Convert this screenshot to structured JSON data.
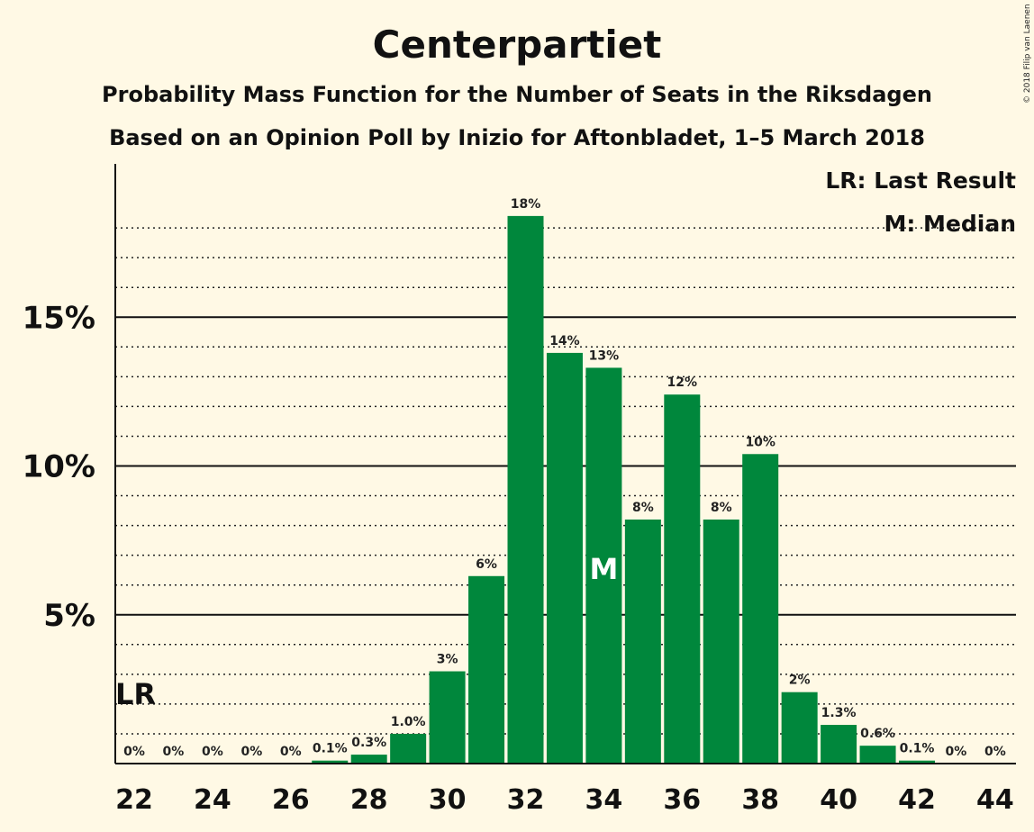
{
  "chart_data": {
    "type": "bar",
    "title": "Centerpartiet",
    "subtitle_1": "Probability Mass Function for the Number of Seats in the Riksdagen",
    "subtitle_2": "Based on an Opinion Poll by Inizio for Aftonbladet, 1–5 March 2018",
    "copyright": "© 2018 Filip van Laenen",
    "bar_color": "#00873c",
    "ylim": [
      0,
      20
    ],
    "yticks": [
      {
        "value": 5,
        "label": "5%"
      },
      {
        "value": 10,
        "label": "10%"
      },
      {
        "value": 15,
        "label": "15%"
      }
    ],
    "xticks": [
      {
        "value": 22,
        "label": "22"
      },
      {
        "value": 24,
        "label": "24"
      },
      {
        "value": 26,
        "label": "26"
      },
      {
        "value": 28,
        "label": "28"
      },
      {
        "value": 30,
        "label": "30"
      },
      {
        "value": 32,
        "label": "32"
      },
      {
        "value": 34,
        "label": "34"
      },
      {
        "value": 36,
        "label": "36"
      },
      {
        "value": 38,
        "label": "38"
      },
      {
        "value": 40,
        "label": "40"
      },
      {
        "value": 42,
        "label": "42"
      },
      {
        "value": 44,
        "label": "44"
      }
    ],
    "bars": [
      {
        "x": 22,
        "value": 0,
        "label": "0%"
      },
      {
        "x": 23,
        "value": 0,
        "label": "0%"
      },
      {
        "x": 24,
        "value": 0,
        "label": "0%"
      },
      {
        "x": 25,
        "value": 0,
        "label": "0%"
      },
      {
        "x": 26,
        "value": 0,
        "label": "0%"
      },
      {
        "x": 27,
        "value": 0.1,
        "label": "0.1%"
      },
      {
        "x": 28,
        "value": 0.3,
        "label": "0.3%"
      },
      {
        "x": 29,
        "value": 1.0,
        "label": "1.0%"
      },
      {
        "x": 30,
        "value": 3.1,
        "label": "3%"
      },
      {
        "x": 31,
        "value": 6.3,
        "label": "6%"
      },
      {
        "x": 32,
        "value": 18.4,
        "label": "18%"
      },
      {
        "x": 33,
        "value": 13.8,
        "label": "14%"
      },
      {
        "x": 34,
        "value": 13.3,
        "label": "13%"
      },
      {
        "x": 35,
        "value": 8.2,
        "label": "8%"
      },
      {
        "x": 36,
        "value": 12.4,
        "label": "12%"
      },
      {
        "x": 37,
        "value": 8.2,
        "label": "8%"
      },
      {
        "x": 38,
        "value": 10.4,
        "label": "10%"
      },
      {
        "x": 39,
        "value": 2.4,
        "label": "2%"
      },
      {
        "x": 40,
        "value": 1.3,
        "label": "1.3%"
      },
      {
        "x": 41,
        "value": 0.6,
        "label": "0.6%"
      },
      {
        "x": 42,
        "value": 0.1,
        "label": "0.1%"
      },
      {
        "x": 43,
        "value": 0,
        "label": "0%"
      },
      {
        "x": 44,
        "value": 0,
        "label": "0%"
      }
    ],
    "last_result": {
      "x": 22,
      "label": "LR"
    },
    "median": {
      "x": 34,
      "label": "M"
    },
    "legend": {
      "placement": "top-right",
      "items": [
        "LR: Last Result",
        "M: Median"
      ]
    },
    "grid": true
  }
}
